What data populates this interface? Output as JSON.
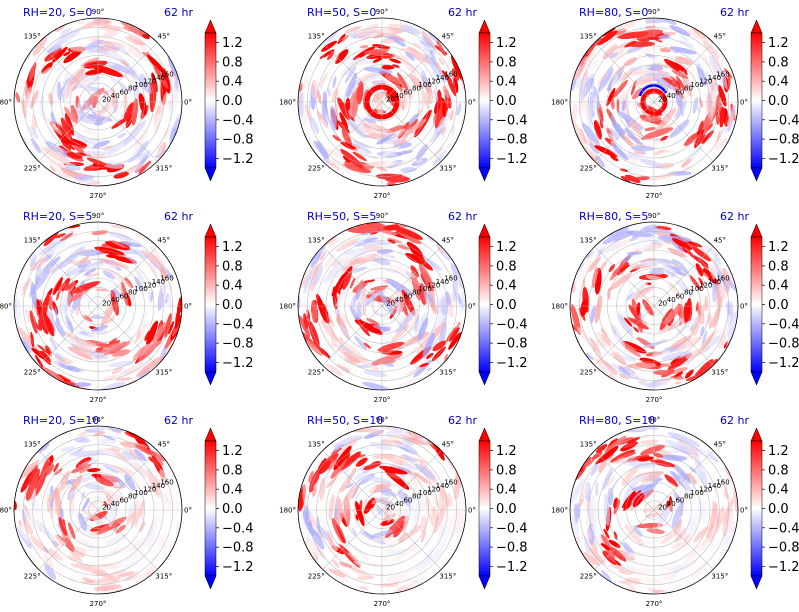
{
  "chart_data": [
    {
      "type": "heatmap",
      "projection": "polar",
      "title": "RH=20, S=0",
      "time_label": "62 hr",
      "rh": 20,
      "s": 0
    },
    {
      "type": "heatmap",
      "projection": "polar",
      "title": "RH=50, S=0",
      "time_label": "62 hr",
      "rh": 50,
      "s": 0
    },
    {
      "type": "heatmap",
      "projection": "polar",
      "title": "RH=80, S=0",
      "time_label": "62 hr",
      "rh": 80,
      "s": 0
    },
    {
      "type": "heatmap",
      "projection": "polar",
      "title": "RH=20, S=5",
      "time_label": "62 hr",
      "rh": 20,
      "s": 5
    },
    {
      "type": "heatmap",
      "projection": "polar",
      "title": "RH=50, S=5",
      "time_label": "62 hr",
      "rh": 50,
      "s": 5
    },
    {
      "type": "heatmap",
      "projection": "polar",
      "title": "RH=80, S=5",
      "time_label": "62 hr",
      "rh": 80,
      "s": 5
    },
    {
      "type": "heatmap",
      "projection": "polar",
      "title": "RH=20, S=10",
      "time_label": "62 hr",
      "rh": 20,
      "s": 10
    },
    {
      "type": "heatmap",
      "projection": "polar",
      "title": "RH=50, S=10",
      "time_label": "62 hr",
      "rh": 50,
      "s": 10
    },
    {
      "type": "heatmap",
      "projection": "polar",
      "title": "RH=80, S=10",
      "time_label": "62 hr",
      "rh": 80,
      "s": 10
    }
  ],
  "shared": {
    "angular_ticks": [
      "0°",
      "45°",
      "90°",
      "135°",
      "180°",
      "225°",
      "270°",
      "315°"
    ],
    "radial_ticks": [
      "20",
      "40",
      "60",
      "80",
      "100",
      "120",
      "140",
      "160"
    ],
    "radial_max": 180,
    "colorbar": {
      "cmap": "bwr",
      "vmin": -1.4,
      "vmax": 1.4,
      "extend": "both",
      "ticks": [
        "1.2",
        "0.8",
        "0.4",
        "0.0",
        "−0.4",
        "−0.8",
        "−1.2"
      ],
      "tick_values": [
        1.2,
        0.8,
        0.4,
        0.0,
        -0.4,
        -0.8,
        -1.2
      ]
    },
    "colors": {
      "positive": "#ff0000",
      "negative": "#0000ff",
      "neutral": "#ffffff",
      "title": "#0000cc"
    }
  }
}
